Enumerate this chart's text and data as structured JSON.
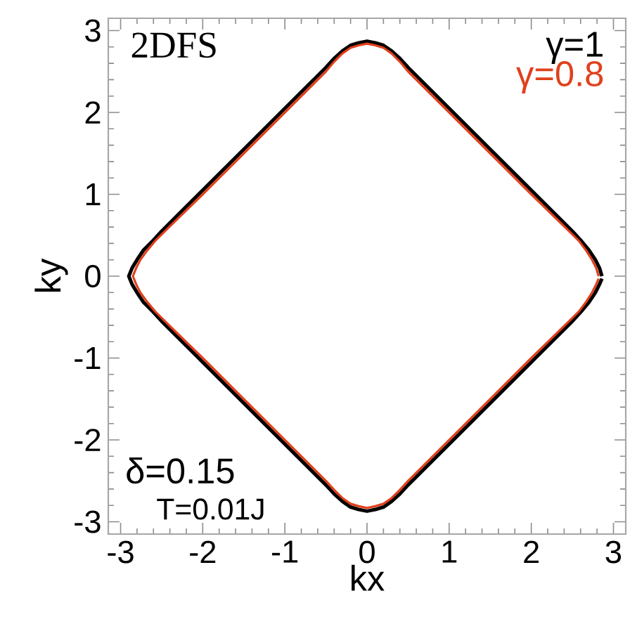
{
  "chart_data": {
    "type": "line",
    "xlabel": "kx",
    "ylabel": "ky",
    "xlim": [
      -3.15,
      3.15
    ],
    "ylim": [
      -3.15,
      3.15
    ],
    "xticks": [
      -3,
      -2,
      -1,
      0,
      1,
      2,
      3
    ],
    "yticks": [
      -3,
      -2,
      -1,
      0,
      1,
      2,
      3
    ],
    "grid": false,
    "legend": "top right",
    "marker": "none",
    "line_style": "solid",
    "annotations": [
      "2DFS",
      "δ=0.15",
      "T=0.01J"
    ],
    "series": [
      {
        "name": "γ=1",
        "color": "#000000",
        "x": [
          2.86,
          2.83,
          2.78,
          2.7,
          2.6,
          2.5,
          1.5,
          1.0,
          0.5,
          0.4,
          0.3,
          0.2,
          0.1,
          0,
          -0.1,
          -0.2,
          -0.3,
          -0.4,
          -0.5,
          -1.0,
          -1.5,
          -2.5,
          -2.6,
          -2.72,
          -2.8,
          -2.86,
          -2.9,
          -2.86,
          -2.8,
          -2.72,
          -2.6,
          -2.5,
          -2.0,
          -1.0,
          -0.5,
          -0.4,
          -0.3,
          -0.2,
          -0.1,
          0,
          0.1,
          0.2,
          0.3,
          0.4,
          0.5,
          1.0,
          1.5,
          2.0,
          2.5,
          2.6,
          2.7,
          2.78,
          2.83,
          2.86
        ],
        "values": [
          0,
          0.1,
          0.2,
          0.32,
          0.44,
          0.55,
          1.55,
          2.05,
          2.55,
          2.66,
          2.75,
          2.82,
          2.85,
          2.87,
          2.85,
          2.82,
          2.75,
          2.66,
          2.55,
          2.05,
          1.55,
          0.55,
          0.44,
          0.32,
          0.2,
          0.1,
          0,
          -0.1,
          -0.2,
          -0.32,
          -0.44,
          -0.55,
          -1.05,
          -2.05,
          -2.55,
          -2.66,
          -2.75,
          -2.82,
          -2.85,
          -2.87,
          -2.85,
          -2.82,
          -2.75,
          -2.66,
          -2.55,
          -2.05,
          -1.55,
          -1.05,
          -0.55,
          -0.44,
          -0.32,
          -0.2,
          -0.1,
          -0.03
        ]
      },
      {
        "name": "γ=0.8",
        "color": "#e0401c",
        "x": [
          2.82,
          2.79,
          2.74,
          2.67,
          2.58,
          2.49,
          2.0,
          1.5,
          1.0,
          0.5,
          0.4,
          0.3,
          0.2,
          0.1,
          0,
          -0.1,
          -0.2,
          -0.3,
          -0.4,
          -0.5,
          -1.0,
          -1.5,
          -2.0,
          -2.49,
          -2.58,
          -2.68,
          -2.76,
          -2.81,
          -2.85,
          -2.81,
          -2.76,
          -2.68,
          -2.58,
          -2.49,
          -2.0,
          -1.5,
          -1.0,
          -0.5,
          -0.4,
          -0.3,
          -0.2,
          -0.1,
          0,
          0.1,
          0.2,
          0.3,
          0.4,
          0.5,
          1.0,
          1.5,
          2.0,
          2.49,
          2.58,
          2.67,
          2.74,
          2.79,
          2.82
        ],
        "values": [
          0,
          0.1,
          0.2,
          0.31,
          0.43,
          0.52,
          1.0,
          1.5,
          2.0,
          2.5,
          2.62,
          2.72,
          2.79,
          2.82,
          2.84,
          2.82,
          2.79,
          2.72,
          2.62,
          2.5,
          2.0,
          1.5,
          1.0,
          0.52,
          0.43,
          0.31,
          0.2,
          0.1,
          0,
          -0.1,
          -0.2,
          -0.31,
          -0.43,
          -0.52,
          -1.0,
          -1.5,
          -2.0,
          -2.5,
          -2.61,
          -2.71,
          -2.78,
          -2.81,
          -2.83,
          -2.81,
          -2.78,
          -2.71,
          -2.61,
          -2.5,
          -2.0,
          -1.5,
          -1.0,
          -0.52,
          -0.43,
          -0.31,
          -0.2,
          -0.1,
          -0.03
        ]
      }
    ]
  }
}
